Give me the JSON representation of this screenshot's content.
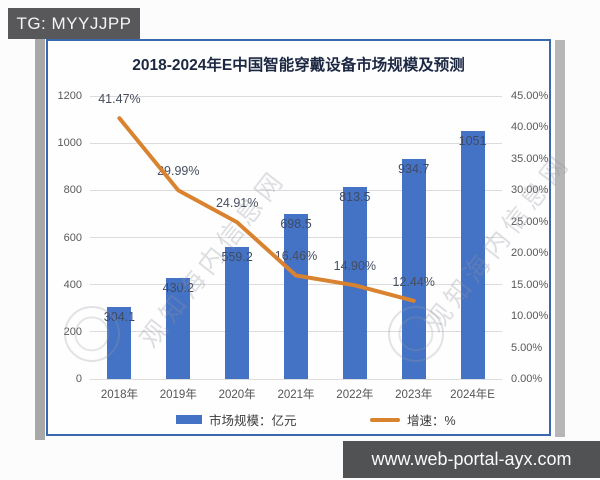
{
  "badges": {
    "top_left": "TG: MYYJJPP",
    "bottom_right": "www.web-portal-ayx.com"
  },
  "watermark": {
    "text": "观知海内信息网"
  },
  "colors": {
    "bar": "#4472C4",
    "line": "#D9822F",
    "panel_border": "#3A68AE",
    "badge_bg": "#58585B"
  },
  "chart_data": {
    "type": "bar",
    "title": "2018-2024年E中国智能穿戴设备市场规模及预测",
    "categories": [
      "2018年",
      "2019年",
      "2020年",
      "2021年",
      "2022年",
      "2023年",
      "2024年E"
    ],
    "series": [
      {
        "name": "市场规模：亿元",
        "type": "bar",
        "axis": "left",
        "values": [
          304.1,
          430.2,
          559.2,
          698.5,
          813.5,
          934.7,
          1051
        ],
        "color": "#4472C4"
      },
      {
        "name": "增速：%",
        "type": "line",
        "axis": "right",
        "values": [
          41.47,
          29.99,
          24.91,
          16.46,
          14.9,
          12.44,
          null
        ],
        "color": "#D9822F"
      }
    ],
    "bar_labels": [
      "304.1",
      "430.2",
      "559.2",
      "698.5",
      "813.5",
      "934.7",
      "1051"
    ],
    "line_labels": [
      "41.47%",
      "29.99%",
      "24.91%",
      "16.46%",
      "14.90%",
      "12.44%"
    ],
    "left_axis": {
      "min": 0,
      "max": 1200,
      "step": 200,
      "ticks": [
        "0",
        "200",
        "400",
        "600",
        "800",
        "1000",
        "1200"
      ]
    },
    "right_axis": {
      "min": 0,
      "max": 45,
      "step": 5,
      "ticks": [
        "0.00%",
        "5.00%",
        "10.00%",
        "15.00%",
        "20.00%",
        "25.00%",
        "30.00%",
        "35.00%",
        "40.00%",
        "45.00%"
      ]
    },
    "legend": [
      {
        "label": "市场规模：亿元",
        "swatch": "bar"
      },
      {
        "label": "增速：%",
        "swatch": "line"
      }
    ],
    "grid": true,
    "legend_position": "bottom"
  }
}
